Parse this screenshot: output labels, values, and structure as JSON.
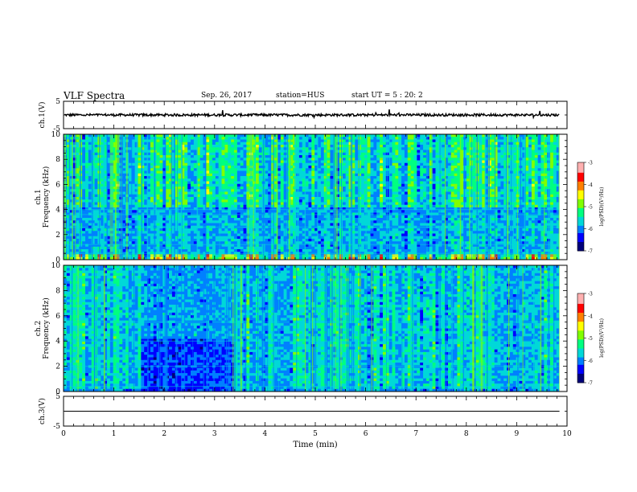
{
  "header": {
    "title": "VLF Spectra",
    "date": "Sep. 26, 2017",
    "station": "station=HUS",
    "start": "start  UT =  5 : 20: 2"
  },
  "colors": {
    "spectrogram_scale": [
      "#00007a",
      "#0000ff",
      "#0080ff",
      "#00d8d8",
      "#00ff80",
      "#80ff00",
      "#ffff00",
      "#ff8000",
      "#ff0000",
      "#ffb0b0",
      "#ffffff"
    ]
  },
  "chart_data": [
    {
      "type": "line",
      "panel": "waveform-ch1",
      "ylabel": "ch.1(V)",
      "yticks": [
        "5",
        "-5"
      ],
      "ylim": [
        -5,
        5
      ],
      "xlim": [
        0,
        10
      ],
      "trace": "noisy signal near 0 V with small spikes, ends ~9.85 min"
    },
    {
      "type": "heatmap",
      "panel": "spectrogram-ch1",
      "ylabel": "ch.1\nFrequency (kHz)",
      "yticks": [
        "0",
        "2",
        "4",
        "6",
        "8",
        "10"
      ],
      "ylim": [
        0,
        10
      ],
      "xlim": [
        0,
        10
      ],
      "colorbar": {
        "label": "log(PSD)(V²/Hz)",
        "ticks": [
          "-3",
          "-4",
          "-5",
          "-6",
          "-7"
        ],
        "range": [
          -7,
          -3
        ]
      }
    },
    {
      "type": "heatmap",
      "panel": "spectrogram-ch2",
      "ylabel": "ch.2\nFrequency (kHz)",
      "yticks": [
        "0",
        "2",
        "4",
        "6",
        "8",
        "10"
      ],
      "ylim": [
        0,
        10
      ],
      "xlim": [
        0,
        10
      ],
      "colorbar": {
        "label": "log(PSD)(V²/Hz)",
        "ticks": [
          "-3",
          "-4",
          "-5",
          "-6",
          "-7"
        ],
        "range": [
          -7,
          -3
        ]
      }
    },
    {
      "type": "line",
      "panel": "waveform-ch3",
      "ylabel": "ch.3(V)",
      "yticks": [
        "5",
        "-5"
      ],
      "ylim": [
        -5,
        5
      ],
      "xlim": [
        0,
        10
      ],
      "xticks": [
        "0",
        "1",
        "2",
        "3",
        "4",
        "5",
        "6",
        "7",
        "8",
        "9",
        "10"
      ],
      "xlabel": "Time (min)",
      "trace": "flat line at 0 V"
    }
  ]
}
